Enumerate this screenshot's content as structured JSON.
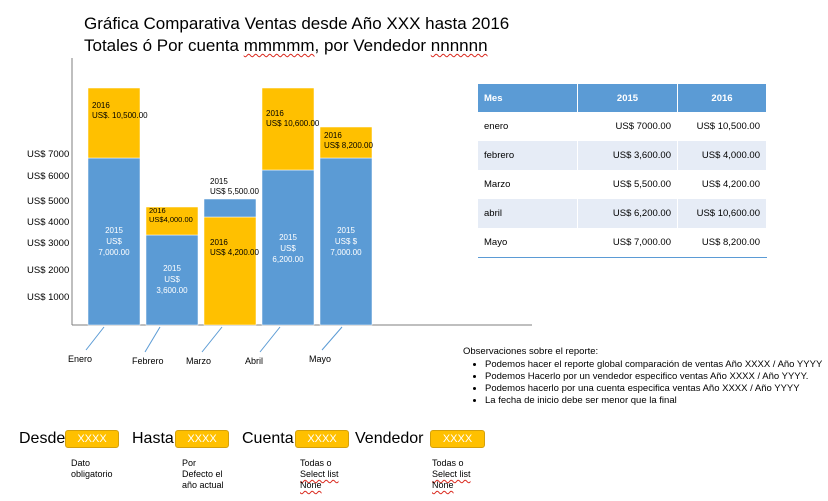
{
  "title_line1": "Gráfica Comparativa Ventas desde Año XXX  hasta 2016",
  "title_line2_prefix": "Totales ó Por cuenta ",
  "title_line2_m": "mmmmm",
  "title_line2_mid": ", por Vendedor ",
  "title_line2_n": "nnnnnn",
  "chart_data": {
    "type": "bar",
    "stacked": true,
    "categories": [
      "Enero",
      "Febrero",
      "Marzo",
      "Abril",
      "Mayo"
    ],
    "y_ticks": [
      "US$ 1000",
      "US$ 2000",
      "US$ 3000",
      "US$ 4000",
      "US$ 5000",
      "US$ 6000",
      "US$ 7000"
    ],
    "series": [
      {
        "name": "2015",
        "color": "#5b9bd5",
        "values": [
          7000,
          3600,
          5500,
          6200,
          7000
        ],
        "labels": [
          "US$ 7,000.00",
          "US$ 3,600.00",
          "US$ 5,500.00",
          "US$ 6,200.00",
          "US$ $ 7,000.00"
        ]
      },
      {
        "name": "2016",
        "color": "#ffc000",
        "values": [
          10500,
          4000,
          4200,
          10600,
          8200
        ],
        "labels": [
          "US$. 10,500.00",
          "US$4,000.00",
          "US$ 4,200.00",
          "US$ 10,600.00",
          "US$ 8,200.00"
        ]
      }
    ]
  },
  "table": {
    "headers": [
      "Mes",
      "2015",
      "2016"
    ],
    "rows": [
      [
        "enero",
        "US$ 7000.00",
        "US$ 10,500.00"
      ],
      [
        "febrero",
        "US$ 3,600.00",
        "US$ 4,000.00"
      ],
      [
        "Marzo",
        "US$ 5,500.00",
        "US$ 4,200.00"
      ],
      [
        "abril",
        "US$ 6,200.00",
        "US$ 10,600.00"
      ],
      [
        "Mayo",
        "US$ 7,000.00",
        "US$ 8,200.00"
      ]
    ]
  },
  "observations": {
    "title": "Observaciones sobre el reporte:",
    "items": [
      "Podemos hacer el reporte global comparación de ventas Año XXXX / Año YYYY",
      "Podemos Hacerlo por un vendedor especifico ventas Año XXXX / Año YYYY.",
      "Podemos hacerlo por una cuenta especifica ventas Año XXXX / Año YYYY",
      "La fecha de inicio debe ser menor que la final"
    ]
  },
  "controls": {
    "desde": {
      "label": "Desde",
      "value": "XXXX",
      "note": [
        "Dato",
        "obligatorio"
      ]
    },
    "hasta": {
      "label": "Hasta",
      "value": "XXXX",
      "note": [
        "Por",
        "Defecto el",
        "año actual"
      ]
    },
    "cuenta": {
      "label": "Cuenta",
      "value": "XXXX",
      "note": [
        "Todas o",
        "Select list",
        "None"
      ]
    },
    "vendedor": {
      "label": "Vendedor",
      "value": "XXXX",
      "note": [
        "Todas o",
        "Select list",
        "None"
      ]
    }
  },
  "colors": {
    "series2015": "#5b9bd5",
    "series2016": "#ffc000",
    "table_header": "#5b9bd5",
    "field": "#ffc000"
  }
}
